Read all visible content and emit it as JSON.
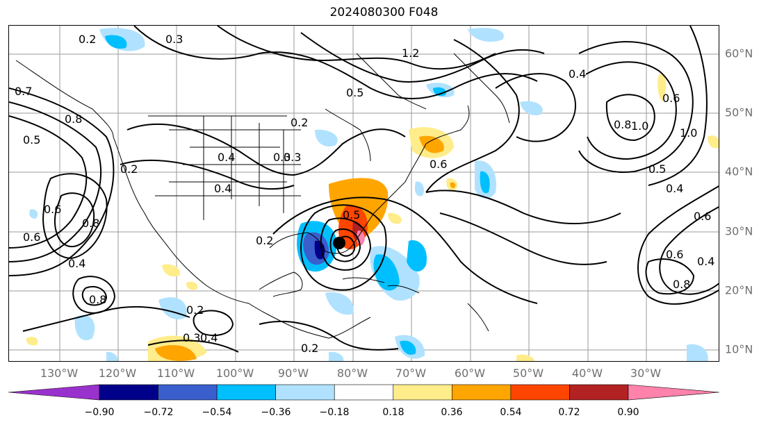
{
  "title": "2024080300 F048",
  "lon_labels": [
    "130°W",
    "120°W",
    "110°W",
    "100°W",
    "90°W",
    "80°W",
    "70°W",
    "60°W",
    "50°W",
    "40°W",
    "30°W"
  ],
  "lat_labels": [
    "60°N",
    "50°N",
    "40°N",
    "30°N",
    "20°N",
    "10°N"
  ],
  "colorbar": {
    "ticks": [
      "−0.90",
      "−0.72",
      "−0.54",
      "−0.36",
      "−0.18",
      "0.18",
      "0.36",
      "0.54",
      "0.72",
      "0.90"
    ],
    "colors": [
      "#9932cc",
      "#00008b",
      "#3a5fcd",
      "#00bfff",
      "#b0e2ff",
      "#ffffff",
      "#ffec8b",
      "#ffa500",
      "#ff4500",
      "#b22222",
      "#ff82ab"
    ]
  },
  "contour_labels": [
    {
      "text": "0.2"
    },
    {
      "text": "0.3"
    },
    {
      "text": "0.2"
    },
    {
      "text": "0.3"
    },
    {
      "text": "0.7"
    },
    {
      "text": "0.8"
    },
    {
      "text": "0.5"
    },
    {
      "text": "0.2"
    },
    {
      "text": "0.4"
    },
    {
      "text": "0.3"
    },
    {
      "text": "0.2"
    },
    {
      "text": "0.4"
    },
    {
      "text": "1.2"
    },
    {
      "text": "0.4"
    },
    {
      "text": "1.0"
    },
    {
      "text": "0.8"
    },
    {
      "text": "0.6"
    },
    {
      "text": "1.0"
    },
    {
      "text": "0.5"
    },
    {
      "text": "0.4"
    },
    {
      "text": "0.6"
    },
    {
      "text": "0.4"
    },
    {
      "text": "0.6"
    },
    {
      "text": "0.8"
    },
    {
      "text": "0.6"
    },
    {
      "text": "0.5"
    },
    {
      "text": "0.3"
    },
    {
      "text": "0.4"
    },
    {
      "text": "0.2"
    },
    {
      "text": "0.6"
    },
    {
      "text": "0.8"
    },
    {
      "text": "0.5"
    },
    {
      "text": "0.2"
    },
    {
      "text": "0.8"
    },
    {
      "text": "0.4"
    },
    {
      "text": "0.6"
    }
  ]
}
